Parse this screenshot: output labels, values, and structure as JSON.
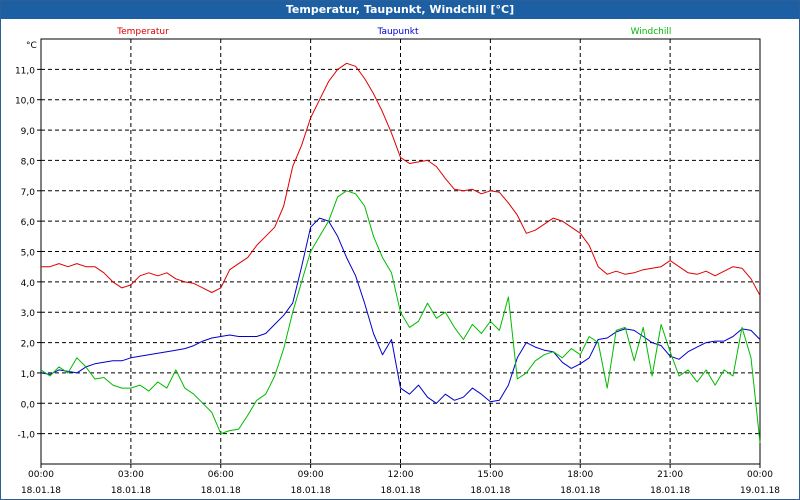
{
  "window": {
    "title": "Temperatur, Taupunkt, Windchill [°C]"
  },
  "chart_data": {
    "type": "line",
    "title": "Temperatur, Taupunkt, Windchill [°C]",
    "ylabel": "°C",
    "ylim": [
      -2.0,
      12.0
    ],
    "xlim": [
      0,
      24
    ],
    "grid": true,
    "yticks": [
      -1.0,
      0.0,
      1.0,
      2.0,
      3.0,
      4.0,
      5.0,
      6.0,
      7.0,
      8.0,
      9.0,
      10.0,
      11.0
    ],
    "ytick_labels": [
      "-1,0",
      "0,0",
      "1,0",
      "2,0",
      "3,0",
      "4,0",
      "5,0",
      "6,0",
      "7,0",
      "8,0",
      "9,0",
      "10,0",
      "11,0"
    ],
    "xticks": [
      {
        "x": 0,
        "time": "00:00",
        "date": "18.01.18"
      },
      {
        "x": 3,
        "time": "03:00",
        "date": "18.01.18"
      },
      {
        "x": 6,
        "time": "06:00",
        "date": "18.01.18"
      },
      {
        "x": 9,
        "time": "09:00",
        "date": "18.01.18"
      },
      {
        "x": 12,
        "time": "12:00",
        "date": "18.01.18"
      },
      {
        "x": 15,
        "time": "15:00",
        "date": "18.01.18"
      },
      {
        "x": 18,
        "time": "18:00",
        "date": "18.01.18"
      },
      {
        "x": 21,
        "time": "21:00",
        "date": "18.01.18"
      },
      {
        "x": 24,
        "time": "00:00",
        "date": "19.01.18"
      }
    ],
    "series": [
      {
        "name": "Temperatur",
        "color": "#dd0000",
        "x": [
          0,
          0.3,
          0.6,
          0.9,
          1.2,
          1.5,
          1.8,
          2.1,
          2.4,
          2.7,
          3.0,
          3.3,
          3.6,
          3.9,
          4.2,
          4.5,
          4.8,
          5.1,
          5.4,
          5.7,
          6.0,
          6.3,
          6.6,
          6.9,
          7.2,
          7.5,
          7.8,
          8.1,
          8.4,
          8.7,
          9.0,
          9.3,
          9.6,
          9.9,
          10.2,
          10.5,
          10.8,
          11.1,
          11.4,
          11.7,
          12.0,
          12.3,
          12.6,
          12.9,
          13.2,
          13.5,
          13.8,
          14.1,
          14.4,
          14.7,
          15.0,
          15.3,
          15.6,
          15.9,
          16.2,
          16.5,
          16.8,
          17.1,
          17.4,
          17.7,
          18.0,
          18.3,
          18.6,
          18.9,
          19.2,
          19.5,
          19.8,
          20.1,
          20.4,
          20.7,
          21.0,
          21.3,
          21.6,
          21.9,
          22.2,
          22.5,
          22.8,
          23.1,
          23.4,
          23.7,
          24.0
        ],
        "values": [
          4.5,
          4.5,
          4.6,
          4.5,
          4.6,
          4.5,
          4.5,
          4.3,
          4.0,
          3.8,
          3.9,
          4.2,
          4.3,
          4.2,
          4.3,
          4.1,
          4.0,
          3.95,
          3.8,
          3.65,
          3.8,
          4.4,
          4.6,
          4.8,
          5.2,
          5.5,
          5.8,
          6.5,
          7.8,
          8.5,
          9.4,
          10.0,
          10.6,
          11.0,
          11.2,
          11.1,
          10.7,
          10.2,
          9.6,
          8.9,
          8.1,
          7.9,
          7.95,
          8.0,
          7.8,
          7.4,
          7.05,
          7.0,
          7.05,
          6.9,
          7.0,
          6.95,
          6.6,
          6.2,
          5.6,
          5.7,
          5.9,
          6.1,
          6.0,
          5.8,
          5.6,
          5.2,
          4.5,
          4.25,
          4.35,
          4.25,
          4.3,
          4.4,
          4.45,
          4.5,
          4.7,
          4.5,
          4.3,
          4.25,
          4.35,
          4.2,
          4.35,
          4.5,
          4.45,
          4.1,
          3.55
        ]
      },
      {
        "name": "Taupunkt",
        "color": "#0000cc",
        "x": [
          0,
          0.3,
          0.6,
          0.9,
          1.2,
          1.5,
          1.8,
          2.1,
          2.4,
          2.7,
          3.0,
          3.3,
          3.6,
          3.9,
          4.2,
          4.5,
          4.8,
          5.1,
          5.4,
          5.7,
          6.0,
          6.3,
          6.6,
          6.9,
          7.2,
          7.5,
          7.8,
          8.1,
          8.4,
          8.7,
          9.0,
          9.3,
          9.6,
          9.9,
          10.2,
          10.5,
          10.8,
          11.1,
          11.4,
          11.7,
          12.0,
          12.3,
          12.6,
          12.9,
          13.2,
          13.5,
          13.8,
          14.1,
          14.4,
          14.7,
          15.0,
          15.3,
          15.6,
          15.9,
          16.2,
          16.5,
          16.8,
          17.1,
          17.4,
          17.7,
          18.0,
          18.3,
          18.6,
          18.9,
          19.2,
          19.5,
          19.8,
          20.1,
          20.4,
          20.7,
          21.0,
          21.3,
          21.6,
          21.9,
          22.2,
          22.5,
          22.8,
          23.1,
          23.4,
          23.7,
          24.0
        ],
        "values": [
          1.0,
          0.95,
          1.1,
          1.05,
          1.0,
          1.2,
          1.3,
          1.35,
          1.4,
          1.4,
          1.5,
          1.55,
          1.6,
          1.65,
          1.7,
          1.75,
          1.8,
          1.9,
          2.05,
          2.15,
          2.2,
          2.25,
          2.2,
          2.2,
          2.2,
          2.3,
          2.6,
          2.9,
          3.3,
          4.5,
          5.8,
          6.1,
          6.0,
          5.5,
          4.8,
          4.2,
          3.3,
          2.3,
          1.6,
          2.1,
          0.5,
          0.3,
          0.6,
          0.2,
          0.0,
          0.3,
          0.1,
          0.2,
          0.5,
          0.3,
          0.05,
          0.1,
          0.6,
          1.5,
          2.0,
          1.85,
          1.75,
          1.7,
          1.35,
          1.15,
          1.3,
          1.5,
          2.1,
          2.15,
          2.35,
          2.45,
          2.4,
          2.2,
          2.0,
          1.9,
          1.55,
          1.45,
          1.7,
          1.85,
          2.0,
          2.05,
          2.05,
          2.2,
          2.45,
          2.4,
          2.1
        ]
      },
      {
        "name": "Windchill",
        "color": "#00bb00",
        "x": [
          0,
          0.3,
          0.6,
          0.9,
          1.2,
          1.5,
          1.8,
          2.1,
          2.4,
          2.7,
          3.0,
          3.3,
          3.6,
          3.9,
          4.2,
          4.5,
          4.8,
          5.1,
          5.4,
          5.7,
          6.0,
          6.3,
          6.6,
          6.9,
          7.2,
          7.5,
          7.8,
          8.1,
          8.4,
          8.7,
          9.0,
          9.3,
          9.6,
          9.9,
          10.2,
          10.5,
          10.8,
          11.1,
          11.4,
          11.7,
          12.0,
          12.3,
          12.6,
          12.9,
          13.2,
          13.5,
          13.8,
          14.1,
          14.4,
          14.7,
          15.0,
          15.3,
          15.6,
          15.9,
          16.2,
          16.5,
          16.8,
          17.1,
          17.4,
          17.7,
          18.0,
          18.3,
          18.6,
          18.9,
          19.2,
          19.5,
          19.8,
          20.1,
          20.4,
          20.7,
          21.0,
          21.3,
          21.6,
          21.9,
          22.2,
          22.5,
          22.8,
          23.1,
          23.4,
          23.7,
          24.0
        ],
        "values": [
          1.1,
          0.9,
          1.2,
          1.0,
          1.5,
          1.2,
          0.8,
          0.85,
          0.6,
          0.5,
          0.5,
          0.6,
          0.4,
          0.7,
          0.5,
          1.1,
          0.5,
          0.3,
          0.0,
          -0.3,
          -1.0,
          -0.9,
          -0.85,
          -0.4,
          0.1,
          0.3,
          0.9,
          1.8,
          3.0,
          4.0,
          5.0,
          5.5,
          6.0,
          6.8,
          7.0,
          6.9,
          6.5,
          5.5,
          4.8,
          4.3,
          3.0,
          2.5,
          2.7,
          3.3,
          2.8,
          3.0,
          2.5,
          2.1,
          2.6,
          2.3,
          2.7,
          2.4,
          3.5,
          0.8,
          1.0,
          1.4,
          1.6,
          1.7,
          1.5,
          1.8,
          1.6,
          2.2,
          2.0,
          0.5,
          2.4,
          2.5,
          1.4,
          2.5,
          0.9,
          2.6,
          1.7,
          0.9,
          1.1,
          0.7,
          1.1,
          0.6,
          1.1,
          0.9,
          2.5,
          1.5,
          -1.3
        ]
      }
    ]
  }
}
